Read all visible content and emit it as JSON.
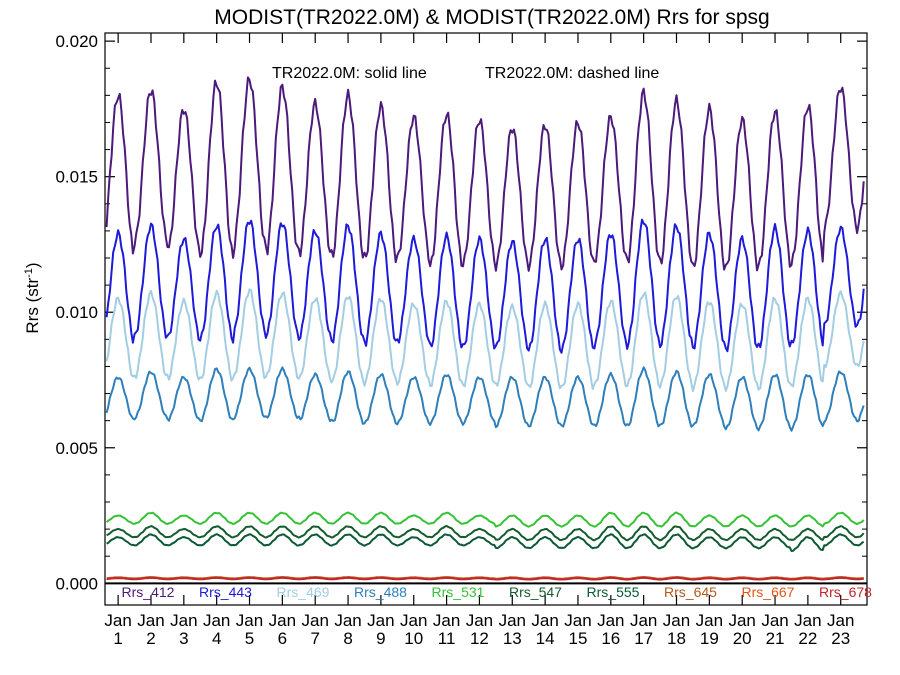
{
  "chart_data": {
    "type": "line",
    "title": "MODIST(TR2022.0M) & MODIST(TR2022.0M)  Rrs for spsg",
    "subtitle_solid": "TR2022.0M: solid line",
    "subtitle_dashed": "TR2022.0M: dashed line",
    "ylabel_main": "Rrs (str",
    "ylabel_exp": "-1",
    "ylabel_close": ")",
    "ylim": [
      -0.0008,
      0.0203
    ],
    "yticks": [
      "0.000",
      "0.005",
      "0.010",
      "0.015",
      "0.020"
    ],
    "ytick_values": [
      0.0,
      0.005,
      0.01,
      0.015,
      0.02
    ],
    "xlim": [
      0.6,
      23.8
    ],
    "xticks_month": [
      "Jan",
      "Jan",
      "Jan",
      "Jan",
      "Jan",
      "Jan",
      "Jan",
      "Jan",
      "Jan",
      "Jan",
      "Jan",
      "Jan",
      "Jan",
      "Jan",
      "Jan",
      "Jan",
      "Jan",
      "Jan",
      "Jan",
      "Jan",
      "Jan",
      "Jan",
      "Jan"
    ],
    "xticks_year": [
      "1",
      "2",
      "3",
      "4",
      "5",
      "6",
      "7",
      "8",
      "9",
      "10",
      "11",
      "12",
      "13",
      "14",
      "15",
      "16",
      "17",
      "18",
      "19",
      "20",
      "21",
      "22",
      "23"
    ],
    "x_unit": "year index (Jan of year n at x = n; one seasonal cycle per year)",
    "zero_line": true,
    "series": [
      {
        "name": "Rrs_412",
        "color": "#4b1a7a",
        "peak_value": [
          0.018,
          0.0182,
          0.0175,
          0.0185,
          0.0186,
          0.0183,
          0.0177,
          0.018,
          0.0176,
          0.0172,
          0.0173,
          0.0171,
          0.0168,
          0.0169,
          0.017,
          0.0172,
          0.0181,
          0.0178,
          0.0175,
          0.0171,
          0.0174,
          0.0176,
          0.0183
        ],
        "trough_value": [
          0.0121,
          0.0126,
          0.0122,
          0.0121,
          0.0124,
          0.0122,
          0.0121,
          0.012,
          0.0119,
          0.012,
          0.0117,
          0.0118,
          0.0117,
          0.0117,
          0.0117,
          0.0119,
          0.0119,
          0.0118,
          0.0116,
          0.0116,
          0.0117,
          0.0118,
          0.0131
        ]
      },
      {
        "name": "Rrs_443",
        "color": "#1d1ad8",
        "peak_value": [
          0.0129,
          0.0132,
          0.0127,
          0.0132,
          0.0134,
          0.0133,
          0.013,
          0.0132,
          0.0129,
          0.0127,
          0.0128,
          0.0127,
          0.0126,
          0.0127,
          0.0127,
          0.0129,
          0.0134,
          0.0132,
          0.0129,
          0.0127,
          0.0131,
          0.013,
          0.0131
        ],
        "trough_value": [
          0.0089,
          0.0091,
          0.009,
          0.009,
          0.0092,
          0.0091,
          0.009,
          0.0089,
          0.0088,
          0.0089,
          0.0087,
          0.0087,
          0.0087,
          0.0086,
          0.0086,
          0.0088,
          0.0088,
          0.0088,
          0.0087,
          0.0086,
          0.0087,
          0.0088,
          0.0095
        ]
      },
      {
        "name": "Rrs_469",
        "color": "#a3cde3",
        "peak_value": [
          0.0105,
          0.0107,
          0.0104,
          0.0107,
          0.0108,
          0.0107,
          0.0105,
          0.0106,
          0.0105,
          0.0103,
          0.0104,
          0.0103,
          0.0102,
          0.0103,
          0.0103,
          0.0104,
          0.0107,
          0.0106,
          0.0104,
          0.0103,
          0.0105,
          0.0105,
          0.0107
        ],
        "trough_value": [
          0.0075,
          0.0076,
          0.0075,
          0.0075,
          0.0076,
          0.0076,
          0.0075,
          0.0074,
          0.0074,
          0.0074,
          0.0073,
          0.0073,
          0.0073,
          0.0072,
          0.0072,
          0.0073,
          0.0073,
          0.0073,
          0.0072,
          0.0072,
          0.0072,
          0.0073,
          0.008
        ]
      },
      {
        "name": "Rrs_488",
        "color": "#2f7fbb",
        "peak_value": [
          0.0076,
          0.0078,
          0.0076,
          0.0079,
          0.0079,
          0.0079,
          0.0077,
          0.0078,
          0.0077,
          0.0076,
          0.0077,
          0.0076,
          0.0076,
          0.0076,
          0.0076,
          0.0077,
          0.0079,
          0.0078,
          0.0077,
          0.0076,
          0.0077,
          0.0077,
          0.0078
        ],
        "trough_value": [
          0.006,
          0.0061,
          0.006,
          0.006,
          0.0061,
          0.0061,
          0.006,
          0.0059,
          0.0059,
          0.0059,
          0.0059,
          0.0059,
          0.0058,
          0.0058,
          0.0058,
          0.0058,
          0.0058,
          0.0058,
          0.0058,
          0.0057,
          0.0057,
          0.0057,
          0.006
        ]
      },
      {
        "name": "Rrs_531",
        "color": "#36c236",
        "peak_value": [
          0.0025,
          0.0026,
          0.0025,
          0.0026,
          0.0026,
          0.0026,
          0.0026,
          0.0026,
          0.0026,
          0.0025,
          0.0026,
          0.0025,
          0.0025,
          0.0025,
          0.0025,
          0.0026,
          0.0026,
          0.0026,
          0.0025,
          0.0025,
          0.0025,
          0.0025,
          0.0026
        ],
        "trough_value": [
          0.0022,
          0.0022,
          0.0022,
          0.0022,
          0.0022,
          0.0022,
          0.0022,
          0.0022,
          0.0022,
          0.0022,
          0.0022,
          0.0022,
          0.0021,
          0.0021,
          0.0021,
          0.0021,
          0.0021,
          0.0021,
          0.0021,
          0.0021,
          0.0021,
          0.0021,
          0.0022
        ]
      },
      {
        "name": "Rrs_547",
        "color": "#145c2c",
        "peak_value": [
          0.002,
          0.0021,
          0.002,
          0.0021,
          0.0021,
          0.0021,
          0.0021,
          0.0021,
          0.0021,
          0.002,
          0.0021,
          0.002,
          0.002,
          0.002,
          0.002,
          0.0021,
          0.0021,
          0.0021,
          0.002,
          0.002,
          0.002,
          0.002,
          0.0021
        ],
        "trough_value": [
          0.0017,
          0.0017,
          0.0017,
          0.0017,
          0.0017,
          0.0017,
          0.0017,
          0.0017,
          0.0017,
          0.0017,
          0.0017,
          0.0017,
          0.0016,
          0.0016,
          0.0016,
          0.0016,
          0.0016,
          0.0016,
          0.0016,
          0.0016,
          0.0016,
          0.0016,
          0.0017
        ]
      },
      {
        "name": "Rrs_555",
        "color": "#0b5a33",
        "peak_value": [
          0.0017,
          0.0018,
          0.0017,
          0.0018,
          0.0018,
          0.0018,
          0.0018,
          0.0018,
          0.0018,
          0.0017,
          0.0018,
          0.0017,
          0.0017,
          0.0017,
          0.0017,
          0.0018,
          0.0018,
          0.0018,
          0.0017,
          0.0017,
          0.0017,
          0.0017,
          0.0018
        ],
        "trough_value": [
          0.0014,
          0.0014,
          0.0014,
          0.0014,
          0.0014,
          0.0014,
          0.0014,
          0.0014,
          0.0014,
          0.0014,
          0.0014,
          0.0014,
          0.0013,
          0.0013,
          0.0013,
          0.0013,
          0.0013,
          0.0013,
          0.0013,
          0.0013,
          0.0013,
          0.0012,
          0.0014
        ]
      },
      {
        "name": "Rrs_645",
        "color": "#b25a1e",
        "peak_value": [
          0.00022,
          0.00023,
          0.00022,
          0.00023,
          0.00023,
          0.00023,
          0.00023,
          0.00023,
          0.00023,
          0.00022,
          0.00023,
          0.00022,
          0.00022,
          0.00022,
          0.00022,
          0.00023,
          0.00023,
          0.00023,
          0.00022,
          0.00022,
          0.00022,
          0.00022,
          0.00023
        ],
        "trough_value": [
          0.00018,
          0.00018,
          0.00018,
          0.00018,
          0.00018,
          0.00018,
          0.00018,
          0.00018,
          0.00018,
          0.00018,
          0.00018,
          0.00018,
          0.00017,
          0.00017,
          0.00017,
          0.00017,
          0.00017,
          0.00017,
          0.00017,
          0.00017,
          0.00017,
          0.00017,
          0.00018
        ]
      },
      {
        "name": "Rrs_667",
        "color": "#e0561a",
        "peak_value": [
          0.0002,
          0.00021,
          0.0002,
          0.00021,
          0.00021,
          0.00021,
          0.00021,
          0.00021,
          0.00021,
          0.0002,
          0.00021,
          0.0002,
          0.0002,
          0.0002,
          0.0002,
          0.00021,
          0.00021,
          0.00021,
          0.0002,
          0.0002,
          0.0002,
          0.0002,
          0.00021
        ],
        "trough_value": [
          0.00016,
          0.00016,
          0.00016,
          0.00016,
          0.00016,
          0.00016,
          0.00016,
          0.00016,
          0.00016,
          0.00016,
          0.00016,
          0.00016,
          0.00015,
          0.00015,
          0.00015,
          0.00015,
          0.00015,
          0.00015,
          0.00015,
          0.00015,
          0.00015,
          0.00015,
          0.00016
        ]
      },
      {
        "name": "Rrs_678",
        "color": "#c0262a",
        "peak_value": [
          0.00019,
          0.0002,
          0.00019,
          0.0002,
          0.0002,
          0.0002,
          0.0002,
          0.0002,
          0.0002,
          0.00019,
          0.0002,
          0.00019,
          0.00019,
          0.00019,
          0.00019,
          0.0002,
          0.0002,
          0.0002,
          0.00019,
          0.00019,
          0.00019,
          0.00019,
          0.0002
        ],
        "trough_value": [
          0.00015,
          0.00015,
          0.00015,
          0.00015,
          0.00015,
          0.00015,
          0.00015,
          0.00015,
          0.00015,
          0.00015,
          0.00015,
          0.00015,
          0.00014,
          0.00014,
          0.00014,
          0.00014,
          0.00014,
          0.00014,
          0.00014,
          0.00014,
          0.00014,
          0.00014,
          0.00015
        ]
      }
    ]
  }
}
